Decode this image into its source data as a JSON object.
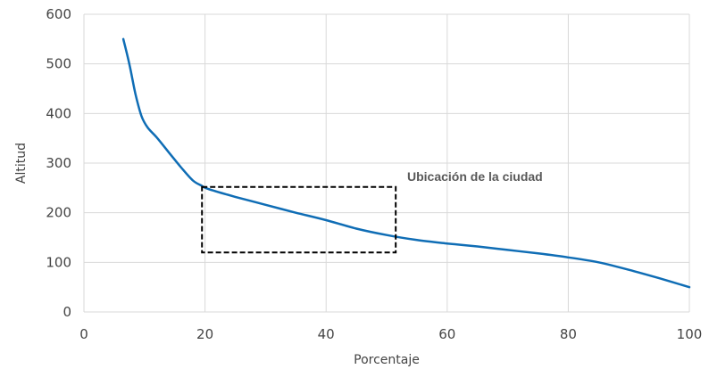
{
  "chart_data": {
    "type": "line",
    "title": "",
    "xlabel": "Porcentaje",
    "ylabel": "Altitud",
    "xlim": [
      0,
      100
    ],
    "ylim": [
      0,
      600
    ],
    "xticks": [
      0,
      20,
      40,
      60,
      80,
      100
    ],
    "yticks": [
      0,
      100,
      200,
      300,
      400,
      500,
      600
    ],
    "grid": true,
    "legend": "none",
    "line_color": "#0f6db5",
    "series": [
      {
        "x": [
          6.5,
          7.5,
          8.5,
          9.5,
          10.5,
          12,
          14,
          16,
          18,
          19.5,
          20.5,
          25,
          30,
          35,
          40,
          45,
          50,
          55,
          60,
          65,
          70,
          75,
          80,
          85,
          90,
          95,
          100
        ],
        "values": [
          550,
          500,
          440,
          395,
          372,
          352,
          322,
          292,
          265,
          254,
          248,
          232,
          216,
          200,
          185,
          168,
          155,
          145,
          138,
          132,
          125,
          118,
          110,
          100,
          85,
          68,
          50
        ]
      }
    ],
    "annotation": {
      "text": "Ubicación de la ciudad",
      "box_x": [
        19.5,
        51.5
      ],
      "box_y": [
        120,
        252
      ]
    }
  }
}
